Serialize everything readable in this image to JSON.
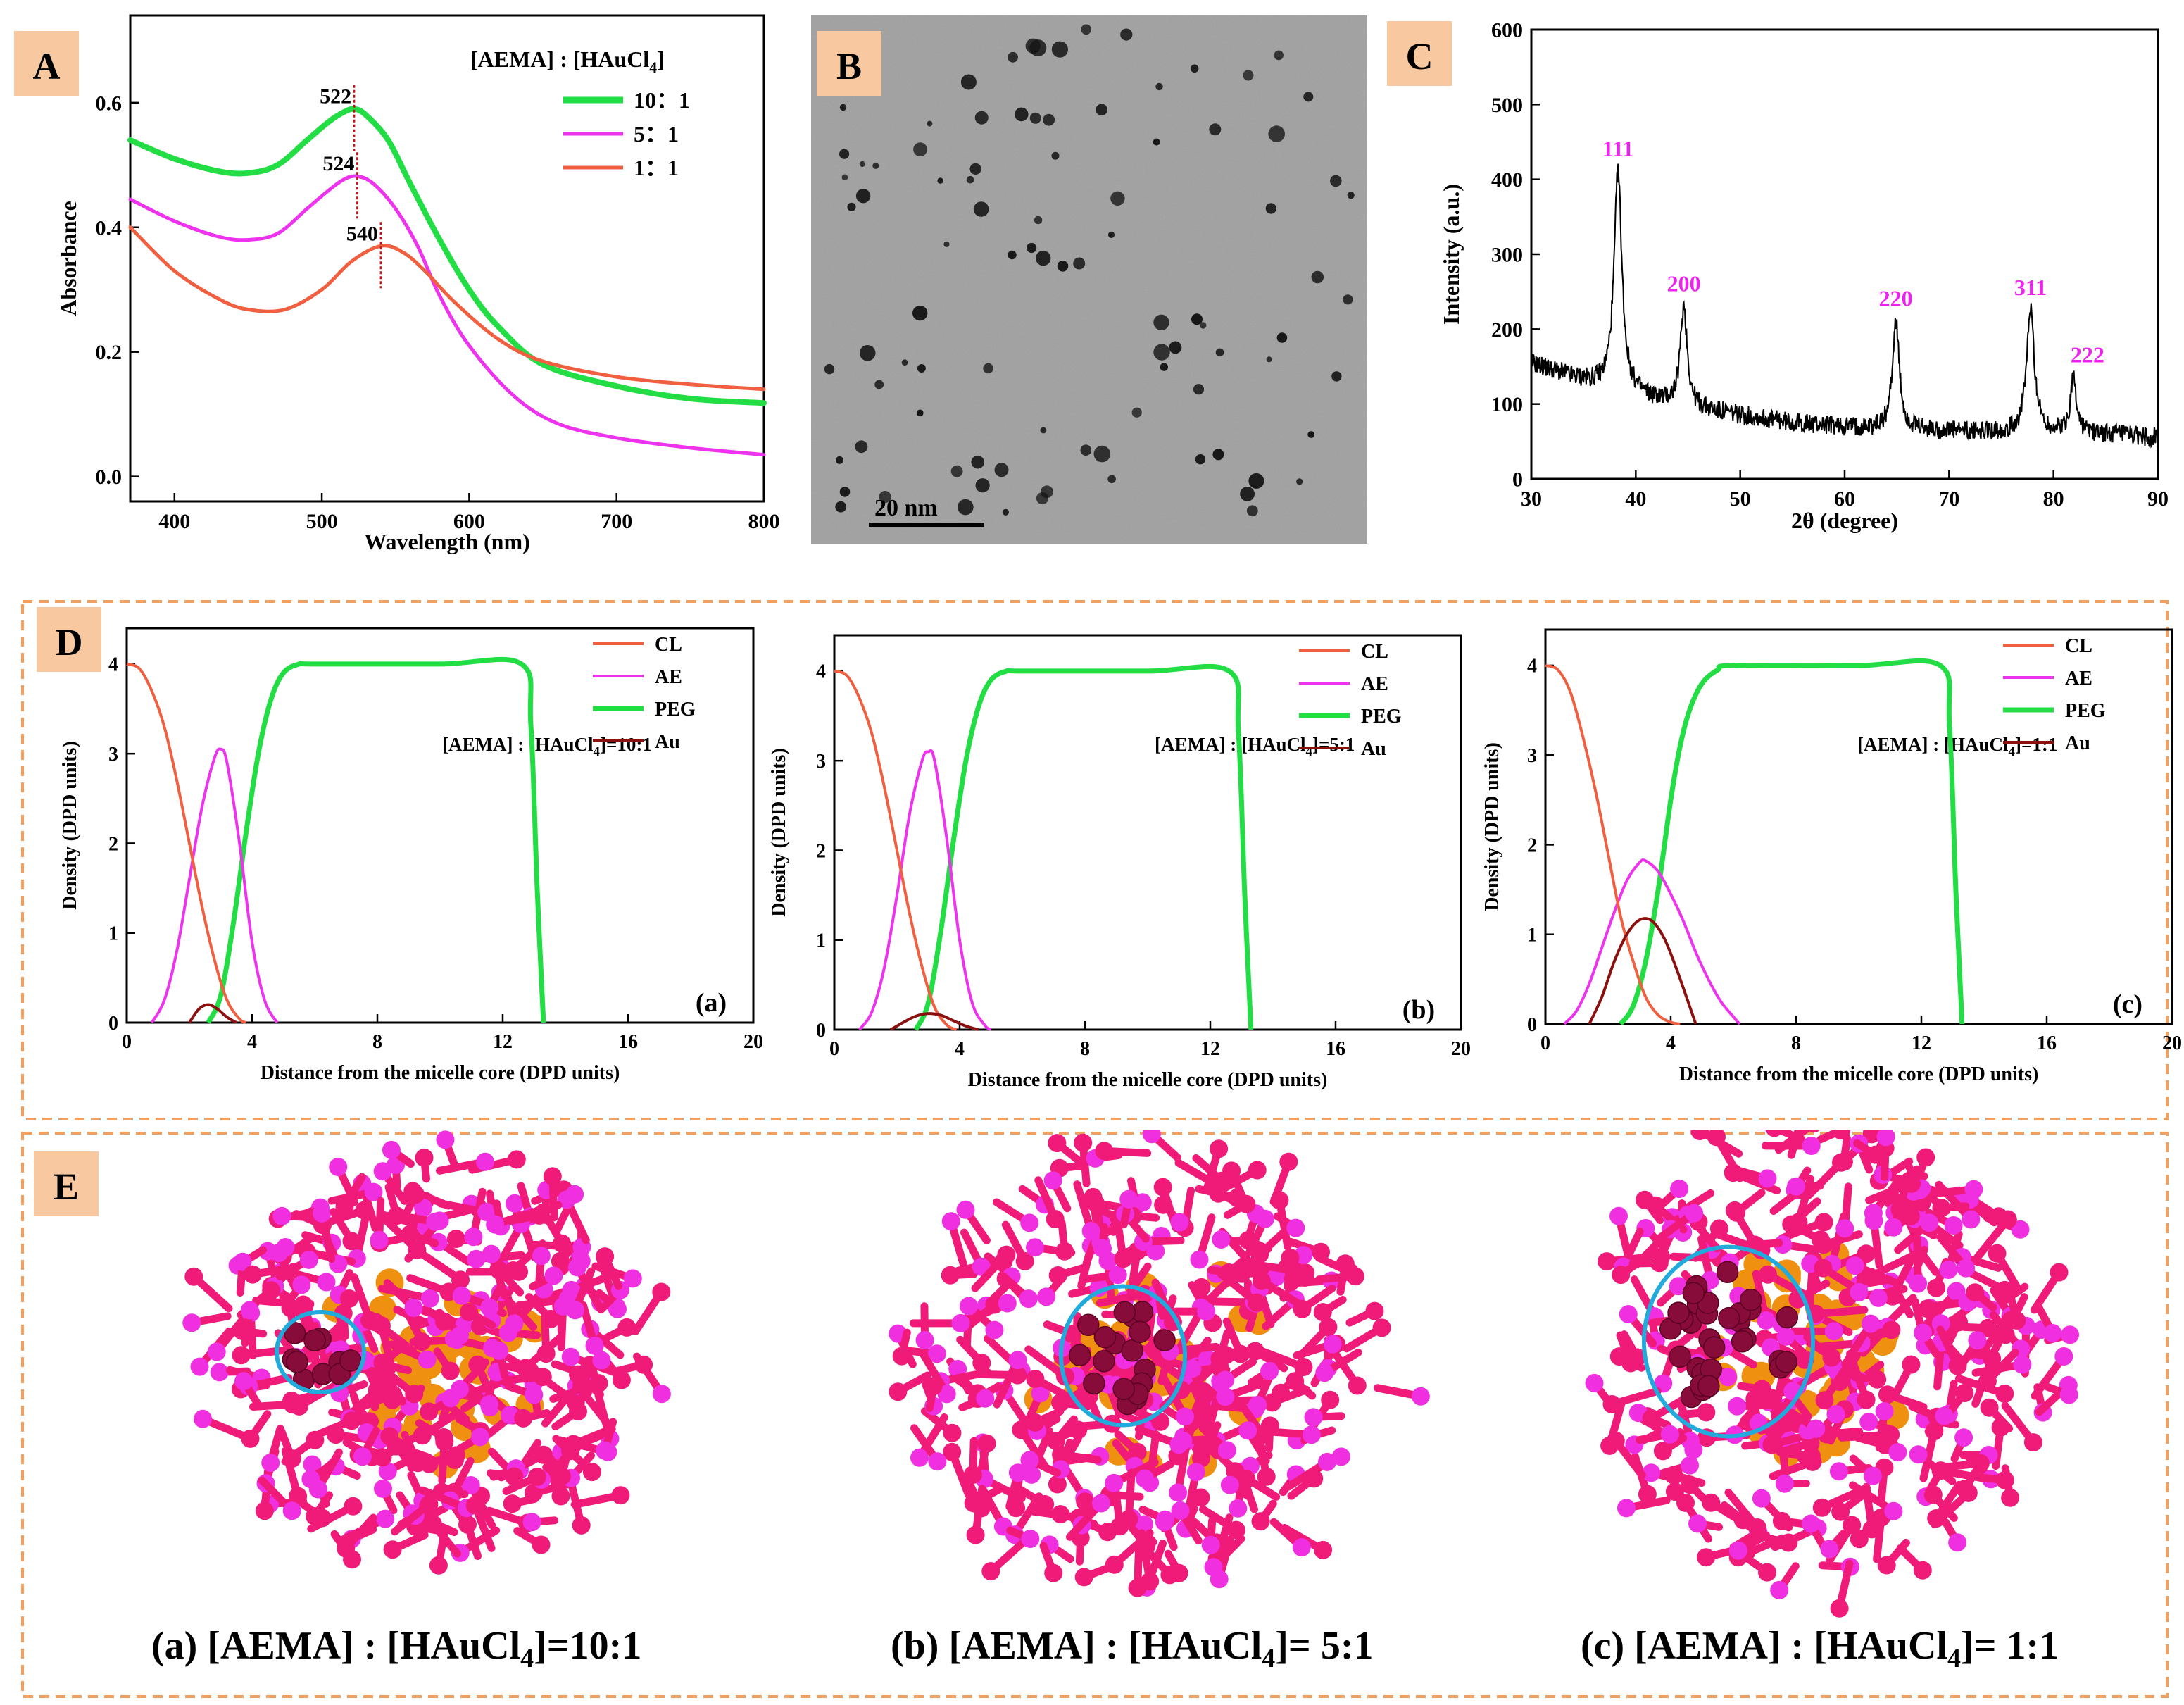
{
  "panel_letters": {
    "A": "A",
    "B": "B",
    "C": "C",
    "D": "D",
    "E": "E"
  },
  "chart_data": [
    {
      "id": "A",
      "type": "line",
      "xlabel": "Wavelength (nm)",
      "ylabel": "Absorbance",
      "xlim": [
        370,
        800
      ],
      "ylim": [
        -0.04,
        0.74
      ],
      "xticks": [
        400,
        500,
        600,
        700,
        800
      ],
      "yticks": [
        0.0,
        0.2,
        0.4,
        0.6
      ],
      "legend_title_prefix": "[AEMA] : [HAuCl",
      "legend_title_sub": "4",
      "legend_title_suffix": "]",
      "legend_position": "top-right",
      "series": [
        {
          "name": "10：1",
          "color": "#22dd44",
          "x": [
            370,
            400,
            430,
            450,
            470,
            490,
            505,
            515,
            522,
            530,
            545,
            560,
            580,
            600,
            620,
            650,
            700,
            750,
            800
          ],
          "y": [
            0.54,
            0.51,
            0.49,
            0.487,
            0.5,
            0.54,
            0.57,
            0.585,
            0.59,
            0.58,
            0.54,
            0.47,
            0.38,
            0.3,
            0.24,
            0.18,
            0.145,
            0.125,
            0.118
          ]
        },
        {
          "name": "5：1",
          "color": "#ee33ee",
          "x": [
            370,
            400,
            430,
            450,
            470,
            490,
            505,
            515,
            524,
            535,
            550,
            565,
            580,
            600,
            630,
            660,
            700,
            750,
            800
          ],
          "y": [
            0.445,
            0.41,
            0.385,
            0.38,
            0.39,
            0.43,
            0.46,
            0.477,
            0.482,
            0.47,
            0.43,
            0.37,
            0.29,
            0.21,
            0.13,
            0.085,
            0.062,
            0.046,
            0.035
          ]
        },
        {
          "name": "1：1",
          "color": "#f06040",
          "x": [
            370,
            400,
            430,
            450,
            475,
            500,
            520,
            540,
            555,
            570,
            590,
            620,
            650,
            700,
            750,
            800
          ],
          "y": [
            0.4,
            0.33,
            0.285,
            0.268,
            0.268,
            0.3,
            0.345,
            0.37,
            0.36,
            0.33,
            0.28,
            0.22,
            0.185,
            0.16,
            0.148,
            0.14
          ]
        }
      ],
      "annotations": [
        {
          "text": "522",
          "x": 522,
          "y": 0.59
        },
        {
          "text": "524",
          "x": 524,
          "y": 0.482
        },
        {
          "text": "540",
          "x": 540,
          "y": 0.37
        }
      ]
    },
    {
      "id": "C",
      "type": "line",
      "xlabel": "2θ (degree)",
      "ylabel": "Intensity (a.u.)",
      "xlim": [
        30,
        90
      ],
      "ylim": [
        0,
        600
      ],
      "xticks": [
        30,
        40,
        50,
        60,
        70,
        80,
        90
      ],
      "yticks": [
        0,
        100,
        200,
        300,
        400,
        500,
        600
      ],
      "baseline": {
        "x": [
          30,
          34,
          38,
          45,
          55,
          65,
          75,
          85,
          90
        ],
        "y": [
          155,
          135,
          118,
          95,
          75,
          65,
          62,
          60,
          55
        ]
      },
      "peaks": [
        {
          "label": "111",
          "x": 38.3,
          "y": 410,
          "width": 0.45
        },
        {
          "label": "200",
          "x": 44.6,
          "y": 230,
          "width": 0.4
        },
        {
          "label": "220",
          "x": 64.9,
          "y": 210,
          "width": 0.4
        },
        {
          "label": "311",
          "x": 77.8,
          "y": 225,
          "width": 0.45
        },
        {
          "label": "222",
          "x": 81.9,
          "y": 135,
          "width": 0.35
        }
      ],
      "label_color": "#ee22ee"
    },
    {
      "id": "D-a",
      "type": "line",
      "xlabel": "Distance from the micelle core (DPD units)",
      "ylabel": "Density (DPD units)",
      "xlim": [
        0,
        20
      ],
      "ylim": [
        0,
        4.4
      ],
      "xticks": [
        0,
        4,
        8,
        12,
        16,
        20
      ],
      "yticks": [
        0,
        1,
        2,
        3,
        4
      ],
      "panel_label": "(a)",
      "ratio_prefix": "[AEMA] : [HAuCl",
      "ratio_sub": "4",
      "ratio_suffix": "]=10:1",
      "series": [
        {
          "name": "CL",
          "color": "#f06040",
          "x": [
            0,
            0.4,
            0.8,
            1.2,
            1.6,
            2.0,
            2.4,
            2.8,
            3.2,
            3.6,
            3.8
          ],
          "y": [
            4.0,
            3.95,
            3.7,
            3.3,
            2.7,
            2.0,
            1.3,
            0.7,
            0.25,
            0.04,
            0
          ]
        },
        {
          "name": "AE",
          "color": "#ee33ee",
          "x": [
            0.8,
            1.2,
            1.6,
            2.0,
            2.4,
            2.8,
            3.0,
            3.2,
            3.6,
            4.0,
            4.4,
            4.8
          ],
          "y": [
            0,
            0.25,
            0.8,
            1.6,
            2.4,
            2.95,
            3.05,
            2.9,
            2.0,
            0.9,
            0.25,
            0
          ]
        },
        {
          "name": "PEG",
          "color": "#22dd44",
          "x": [
            2.6,
            3.0,
            3.4,
            3.8,
            4.2,
            4.6,
            5.0,
            5.5,
            6.0,
            10.0,
            12.6,
            12.9,
            13.1,
            13.3
          ],
          "y": [
            0,
            0.3,
            1.1,
            2.1,
            3.0,
            3.6,
            3.9,
            4.0,
            4.0,
            4.0,
            4.0,
            3.3,
            1.5,
            0
          ]
        },
        {
          "name": "Au",
          "color": "#8b1010",
          "x": [
            2.0,
            2.3,
            2.6,
            2.9,
            3.2,
            3.5
          ],
          "y": [
            0,
            0.15,
            0.2,
            0.15,
            0.06,
            0
          ]
        }
      ]
    },
    {
      "id": "D-b",
      "type": "line",
      "xlabel": "Distance from the micelle core (DPD units)",
      "ylabel": "Density (DPD units)",
      "xlim": [
        0,
        20
      ],
      "ylim": [
        0,
        4.4
      ],
      "xticks": [
        0,
        4,
        8,
        12,
        16,
        20
      ],
      "yticks": [
        0,
        1,
        2,
        3,
        4
      ],
      "panel_label": "(b)",
      "ratio_prefix": "[AEMA] : [HAuCl",
      "ratio_sub": "4",
      "ratio_suffix": "]=5:1",
      "series": [
        {
          "name": "CL",
          "color": "#f06040",
          "x": [
            0,
            0.4,
            0.8,
            1.2,
            1.6,
            2.0,
            2.4,
            2.8,
            3.2,
            3.6,
            3.9
          ],
          "y": [
            4.0,
            3.95,
            3.7,
            3.3,
            2.7,
            2.0,
            1.3,
            0.7,
            0.25,
            0.05,
            0
          ]
        },
        {
          "name": "AE",
          "color": "#ee33ee",
          "x": [
            0.8,
            1.2,
            1.6,
            2.0,
            2.4,
            2.8,
            3.0,
            3.2,
            3.6,
            4.0,
            4.4,
            4.8,
            5.0
          ],
          "y": [
            0,
            0.2,
            0.7,
            1.5,
            2.4,
            3.0,
            3.1,
            3.0,
            2.1,
            1.0,
            0.3,
            0.05,
            0
          ]
        },
        {
          "name": "PEG",
          "color": "#22dd44",
          "x": [
            2.6,
            3.0,
            3.4,
            3.8,
            4.2,
            4.6,
            5.0,
            5.5,
            6.0,
            10.0,
            12.6,
            12.9,
            13.1,
            13.3
          ],
          "y": [
            0,
            0.3,
            1.1,
            2.1,
            3.0,
            3.6,
            3.9,
            4.0,
            4.0,
            4.0,
            4.0,
            3.3,
            1.5,
            0
          ]
        },
        {
          "name": "Au",
          "color": "#8b1010",
          "x": [
            1.8,
            2.2,
            2.6,
            3.0,
            3.4,
            3.8,
            4.2,
            4.6
          ],
          "y": [
            0,
            0.08,
            0.15,
            0.18,
            0.16,
            0.1,
            0.04,
            0
          ]
        }
      ]
    },
    {
      "id": "D-c",
      "type": "line",
      "xlabel": "Distance from the micelle core (DPD units)",
      "ylabel": "Density (DPD units)",
      "xlim": [
        0,
        20
      ],
      "ylim": [
        0,
        4.4
      ],
      "xticks": [
        0,
        4,
        8,
        12,
        16,
        20
      ],
      "yticks": [
        0,
        1,
        2,
        3,
        4
      ],
      "panel_label": "(c)",
      "ratio_prefix": "[AEMA] : [HAuCl",
      "ratio_sub": "4",
      "ratio_suffix": "]=1:1",
      "series": [
        {
          "name": "CL",
          "color": "#f06040",
          "x": [
            0,
            0.4,
            0.8,
            1.2,
            1.6,
            2.0,
            2.4,
            2.8,
            3.2,
            3.6,
            4.0,
            4.3
          ],
          "y": [
            4.0,
            3.95,
            3.7,
            3.2,
            2.6,
            1.9,
            1.2,
            0.7,
            0.3,
            0.1,
            0.02,
            0
          ]
        },
        {
          "name": "AE",
          "color": "#ee33ee",
          "x": [
            0.6,
            1.0,
            1.4,
            1.8,
            2.2,
            2.6,
            3.0,
            3.2,
            3.6,
            4.0,
            4.4,
            4.8,
            5.2,
            5.6,
            6.0,
            6.2
          ],
          "y": [
            0,
            0.15,
            0.45,
            0.85,
            1.25,
            1.6,
            1.8,
            1.82,
            1.7,
            1.45,
            1.15,
            0.8,
            0.5,
            0.25,
            0.08,
            0
          ]
        },
        {
          "name": "PEG",
          "color": "#22dd44",
          "x": [
            2.4,
            2.8,
            3.2,
            3.6,
            4.0,
            4.3,
            4.6,
            5.0,
            5.5,
            6.0,
            10.0,
            12.6,
            12.9,
            13.1,
            13.3
          ],
          "y": [
            0,
            0.2,
            0.7,
            1.5,
            2.5,
            3.1,
            3.5,
            3.8,
            3.95,
            4.0,
            4.0,
            4.0,
            3.3,
            1.5,
            0
          ]
        },
        {
          "name": "Au",
          "color": "#8b1010",
          "x": [
            1.4,
            1.8,
            2.2,
            2.6,
            3.0,
            3.4,
            3.8,
            4.2,
            4.6,
            4.8
          ],
          "y": [
            0,
            0.3,
            0.7,
            1.0,
            1.16,
            1.15,
            0.95,
            0.6,
            0.2,
            0
          ]
        }
      ]
    }
  ],
  "tem": {
    "scale_label": "20 nm"
  },
  "micelles": [
    {
      "caption_prefix": "(a) [AEMA] : [HAuCl",
      "caption_sub": "4",
      "caption_suffix": "]=10:1"
    },
    {
      "caption_prefix": "(b) [AEMA] : [HAuCl",
      "caption_sub": "4",
      "caption_suffix": "]= 5:1"
    },
    {
      "caption_prefix": "(c) [AEMA] : [HAuCl",
      "caption_sub": "4",
      "caption_suffix": "]= 1:1"
    }
  ],
  "colors": {
    "panel_tag_bg": "#f8c8a0",
    "dashed_border": "#f0a060",
    "circle": "#22aadd",
    "bead_magenta": "#f030e0",
    "bead_pink": "#f01a78",
    "bead_orange": "#f09010",
    "bead_gold": "#880c3a"
  }
}
